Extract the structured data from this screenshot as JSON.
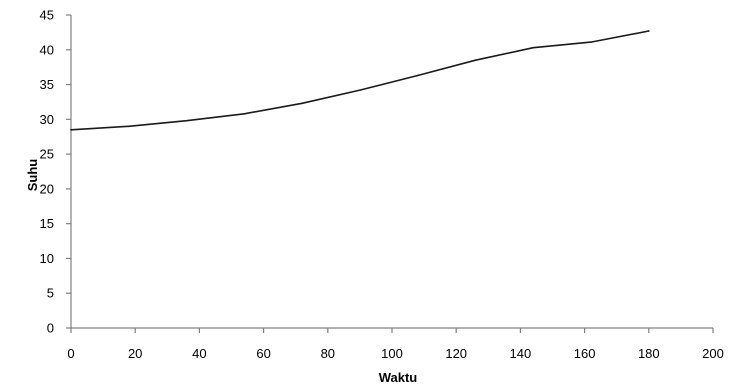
{
  "chart_data": {
    "type": "line",
    "xlabel": "Waktu",
    "ylabel": "Suhu",
    "xlim": [
      0,
      200
    ],
    "ylim": [
      0,
      45
    ],
    "xticks": [
      0,
      20,
      40,
      60,
      80,
      100,
      120,
      140,
      160,
      180,
      200
    ],
    "yticks": [
      0,
      5,
      10,
      15,
      20,
      25,
      30,
      35,
      40,
      45
    ],
    "grid": false,
    "legend": "none",
    "series": [
      {
        "color": "#1a1a1a",
        "x": [
          0,
          18,
          36,
          54,
          72,
          90,
          108,
          126,
          144,
          162,
          180
        ],
        "y": [
          28.5,
          29.0,
          29.8,
          30.8,
          32.3,
          34.2,
          36.3,
          38.5,
          40.3,
          41.1,
          42.7
        ]
      }
    ]
  }
}
